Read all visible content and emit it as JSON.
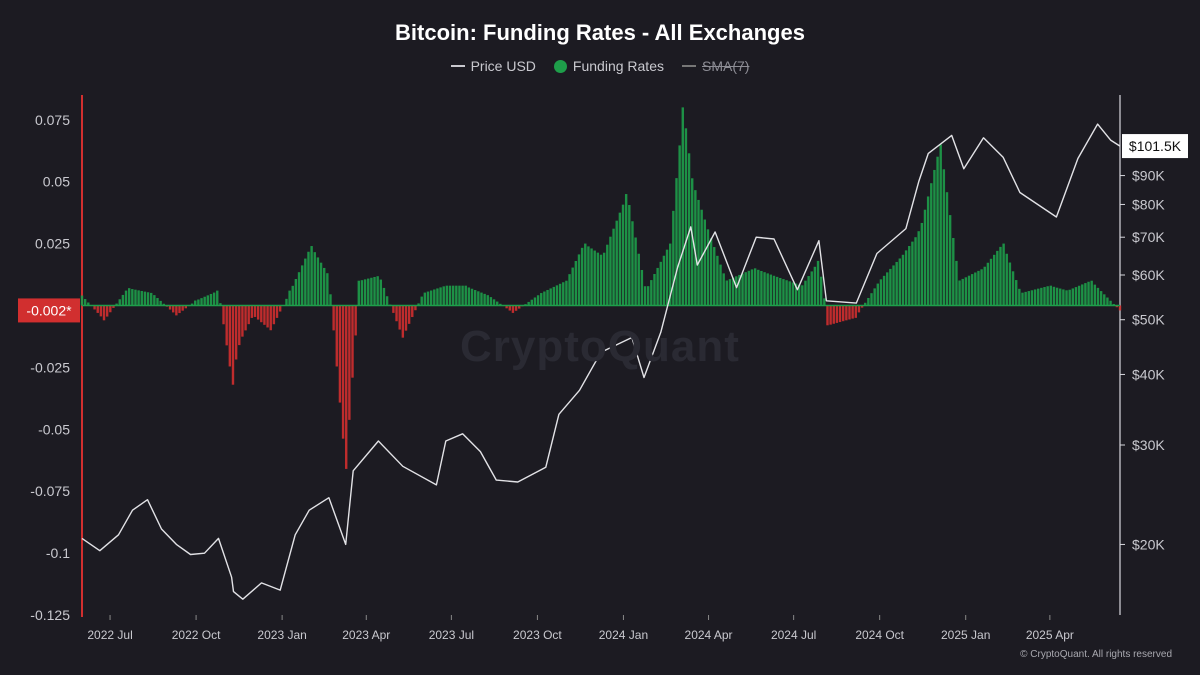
{
  "chart_data": {
    "type": "line",
    "title": "Bitcoin: Funding Rates - All Exchanges",
    "legend": [
      {
        "name": "Price USD",
        "marker": "line",
        "color": "#c9c9cf"
      },
      {
        "name": "Funding Rates",
        "marker": "dot",
        "color": "#1e9e4a"
      },
      {
        "name": "SMA(7)",
        "marker": "line",
        "color": "#777777",
        "disabled": true
      }
    ],
    "legend_placement": "top-center",
    "grid": false,
    "x_range": [
      "2022-06-01",
      "2025-06-15"
    ],
    "x_ticks": [
      "2022 Jul",
      "2022 Oct",
      "2023 Jan",
      "2023 Apr",
      "2023 Jul",
      "2023 Oct",
      "2024 Jan",
      "2024 Apr",
      "2024 Jul",
      "2024 Oct",
      "2025 Jan",
      "2025 Apr"
    ],
    "left_axis": {
      "label": "",
      "range": [
        -0.125,
        0.085
      ],
      "ticks": [
        "0.075",
        "0.05",
        "0.025",
        "-0.025",
        "-0.05",
        "-0.075",
        "-0.1",
        "-0.125"
      ],
      "current_marker": "-0.002*"
    },
    "right_axis": {
      "label": "",
      "scale": "log",
      "ticks": [
        "$90K",
        "$80K",
        "$70K",
        "$60K",
        "$50K",
        "$40K",
        "$30K",
        "$20K"
      ],
      "current_marker": "$101.5K"
    },
    "series": [
      {
        "name": "Price USD",
        "axis": "right",
        "points": [
          [
            "2022-06-01",
            20500
          ],
          [
            "2022-06-20",
            19500
          ],
          [
            "2022-07-10",
            20800
          ],
          [
            "2022-07-25",
            23000
          ],
          [
            "2022-08-10",
            24000
          ],
          [
            "2022-08-25",
            21300
          ],
          [
            "2022-09-10",
            20000
          ],
          [
            "2022-09-25",
            19200
          ],
          [
            "2022-10-10",
            19300
          ],
          [
            "2022-10-25",
            20500
          ],
          [
            "2022-11-08",
            17500
          ],
          [
            "2022-11-10",
            16500
          ],
          [
            "2022-11-20",
            16000
          ],
          [
            "2022-12-10",
            17100
          ],
          [
            "2022-12-30",
            16600
          ],
          [
            "2023-01-15",
            20800
          ],
          [
            "2023-01-30",
            23000
          ],
          [
            "2023-02-20",
            24200
          ],
          [
            "2023-03-10",
            20000
          ],
          [
            "2023-03-18",
            27000
          ],
          [
            "2023-04-14",
            30500
          ],
          [
            "2023-05-10",
            27500
          ],
          [
            "2023-06-15",
            25500
          ],
          [
            "2023-06-25",
            30500
          ],
          [
            "2023-07-13",
            31400
          ],
          [
            "2023-08-01",
            29200
          ],
          [
            "2023-08-18",
            26000
          ],
          [
            "2023-09-10",
            25800
          ],
          [
            "2023-10-10",
            27400
          ],
          [
            "2023-10-24",
            34000
          ],
          [
            "2023-11-15",
            37500
          ],
          [
            "2023-12-08",
            43800
          ],
          [
            "2024-01-10",
            46500
          ],
          [
            "2024-01-23",
            39500
          ],
          [
            "2024-02-10",
            47500
          ],
          [
            "2024-02-28",
            62000
          ],
          [
            "2024-03-13",
            73000
          ],
          [
            "2024-03-20",
            62500
          ],
          [
            "2024-04-08",
            71500
          ],
          [
            "2024-05-01",
            57000
          ],
          [
            "2024-05-22",
            70000
          ],
          [
            "2024-06-10",
            69500
          ],
          [
            "2024-07-05",
            56500
          ],
          [
            "2024-07-28",
            69000
          ],
          [
            "2024-08-05",
            54000
          ],
          [
            "2024-09-06",
            53500
          ],
          [
            "2024-09-28",
            65500
          ],
          [
            "2024-10-29",
            72500
          ],
          [
            "2024-11-12",
            88000
          ],
          [
            "2024-11-22",
            98500
          ],
          [
            "2024-12-17",
            106000
          ],
          [
            "2024-12-30",
            92500
          ],
          [
            "2025-01-20",
            105000
          ],
          [
            "2025-02-10",
            97000
          ],
          [
            "2025-02-28",
            84000
          ],
          [
            "2025-04-08",
            76000
          ],
          [
            "2025-05-01",
            96500
          ],
          [
            "2025-05-22",
            111000
          ],
          [
            "2025-06-05",
            104000
          ],
          [
            "2025-06-15",
            101500
          ]
        ]
      },
      {
        "name": "Funding Rates",
        "axis": "left",
        "color_positive": "#1e9e4a",
        "color_negative": "#d12f2f",
        "points": [
          [
            "2022-06-01",
            0.004
          ],
          [
            "2022-06-25",
            -0.006
          ],
          [
            "2022-07-20",
            0.007
          ],
          [
            "2022-08-15",
            0.005
          ],
          [
            "2022-09-10",
            -0.004
          ],
          [
            "2022-10-01",
            0.002
          ],
          [
            "2022-10-25",
            0.006
          ],
          [
            "2022-11-09",
            -0.032
          ],
          [
            "2022-11-15",
            -0.016
          ],
          [
            "2022-12-01",
            -0.004
          ],
          [
            "2022-12-20",
            -0.01
          ],
          [
            "2023-01-10",
            0.006
          ],
          [
            "2023-02-01",
            0.024
          ],
          [
            "2023-02-20",
            0.012
          ],
          [
            "2023-03-10",
            -0.066
          ],
          [
            "2023-03-25",
            0.01
          ],
          [
            "2023-04-15",
            0.012
          ],
          [
            "2023-05-10",
            -0.013
          ],
          [
            "2023-06-01",
            0.005
          ],
          [
            "2023-06-25",
            0.008
          ],
          [
            "2023-07-15",
            0.008
          ],
          [
            "2023-08-10",
            0.004
          ],
          [
            "2023-09-05",
            -0.003
          ],
          [
            "2023-10-05",
            0.005
          ],
          [
            "2023-11-01",
            0.01
          ],
          [
            "2023-11-20",
            0.025
          ],
          [
            "2023-12-10",
            0.02
          ],
          [
            "2024-01-05",
            0.045
          ],
          [
            "2024-01-25",
            0.006
          ],
          [
            "2024-02-20",
            0.025
          ],
          [
            "2024-03-05",
            0.08
          ],
          [
            "2024-03-15",
            0.05
          ],
          [
            "2024-04-01",
            0.03
          ],
          [
            "2024-04-20",
            0.01
          ],
          [
            "2024-05-20",
            0.015
          ],
          [
            "2024-06-10",
            0.012
          ],
          [
            "2024-07-10",
            0.008
          ],
          [
            "2024-07-28",
            0.018
          ],
          [
            "2024-08-07",
            -0.008
          ],
          [
            "2024-09-05",
            -0.005
          ],
          [
            "2024-10-01",
            0.01
          ],
          [
            "2024-10-25",
            0.02
          ],
          [
            "2024-11-13",
            0.03
          ],
          [
            "2024-12-05",
            0.065
          ],
          [
            "2024-12-25",
            0.01
          ],
          [
            "2025-01-20",
            0.015
          ],
          [
            "2025-02-10",
            0.025
          ],
          [
            "2025-03-01",
            0.005
          ],
          [
            "2025-04-01",
            0.008
          ],
          [
            "2025-04-20",
            0.006
          ],
          [
            "2025-05-15",
            0.01
          ],
          [
            "2025-06-15",
            -0.002
          ]
        ]
      }
    ]
  },
  "watermark": "CryptoQuant",
  "credit": "© CryptoQuant. All rights reserved"
}
